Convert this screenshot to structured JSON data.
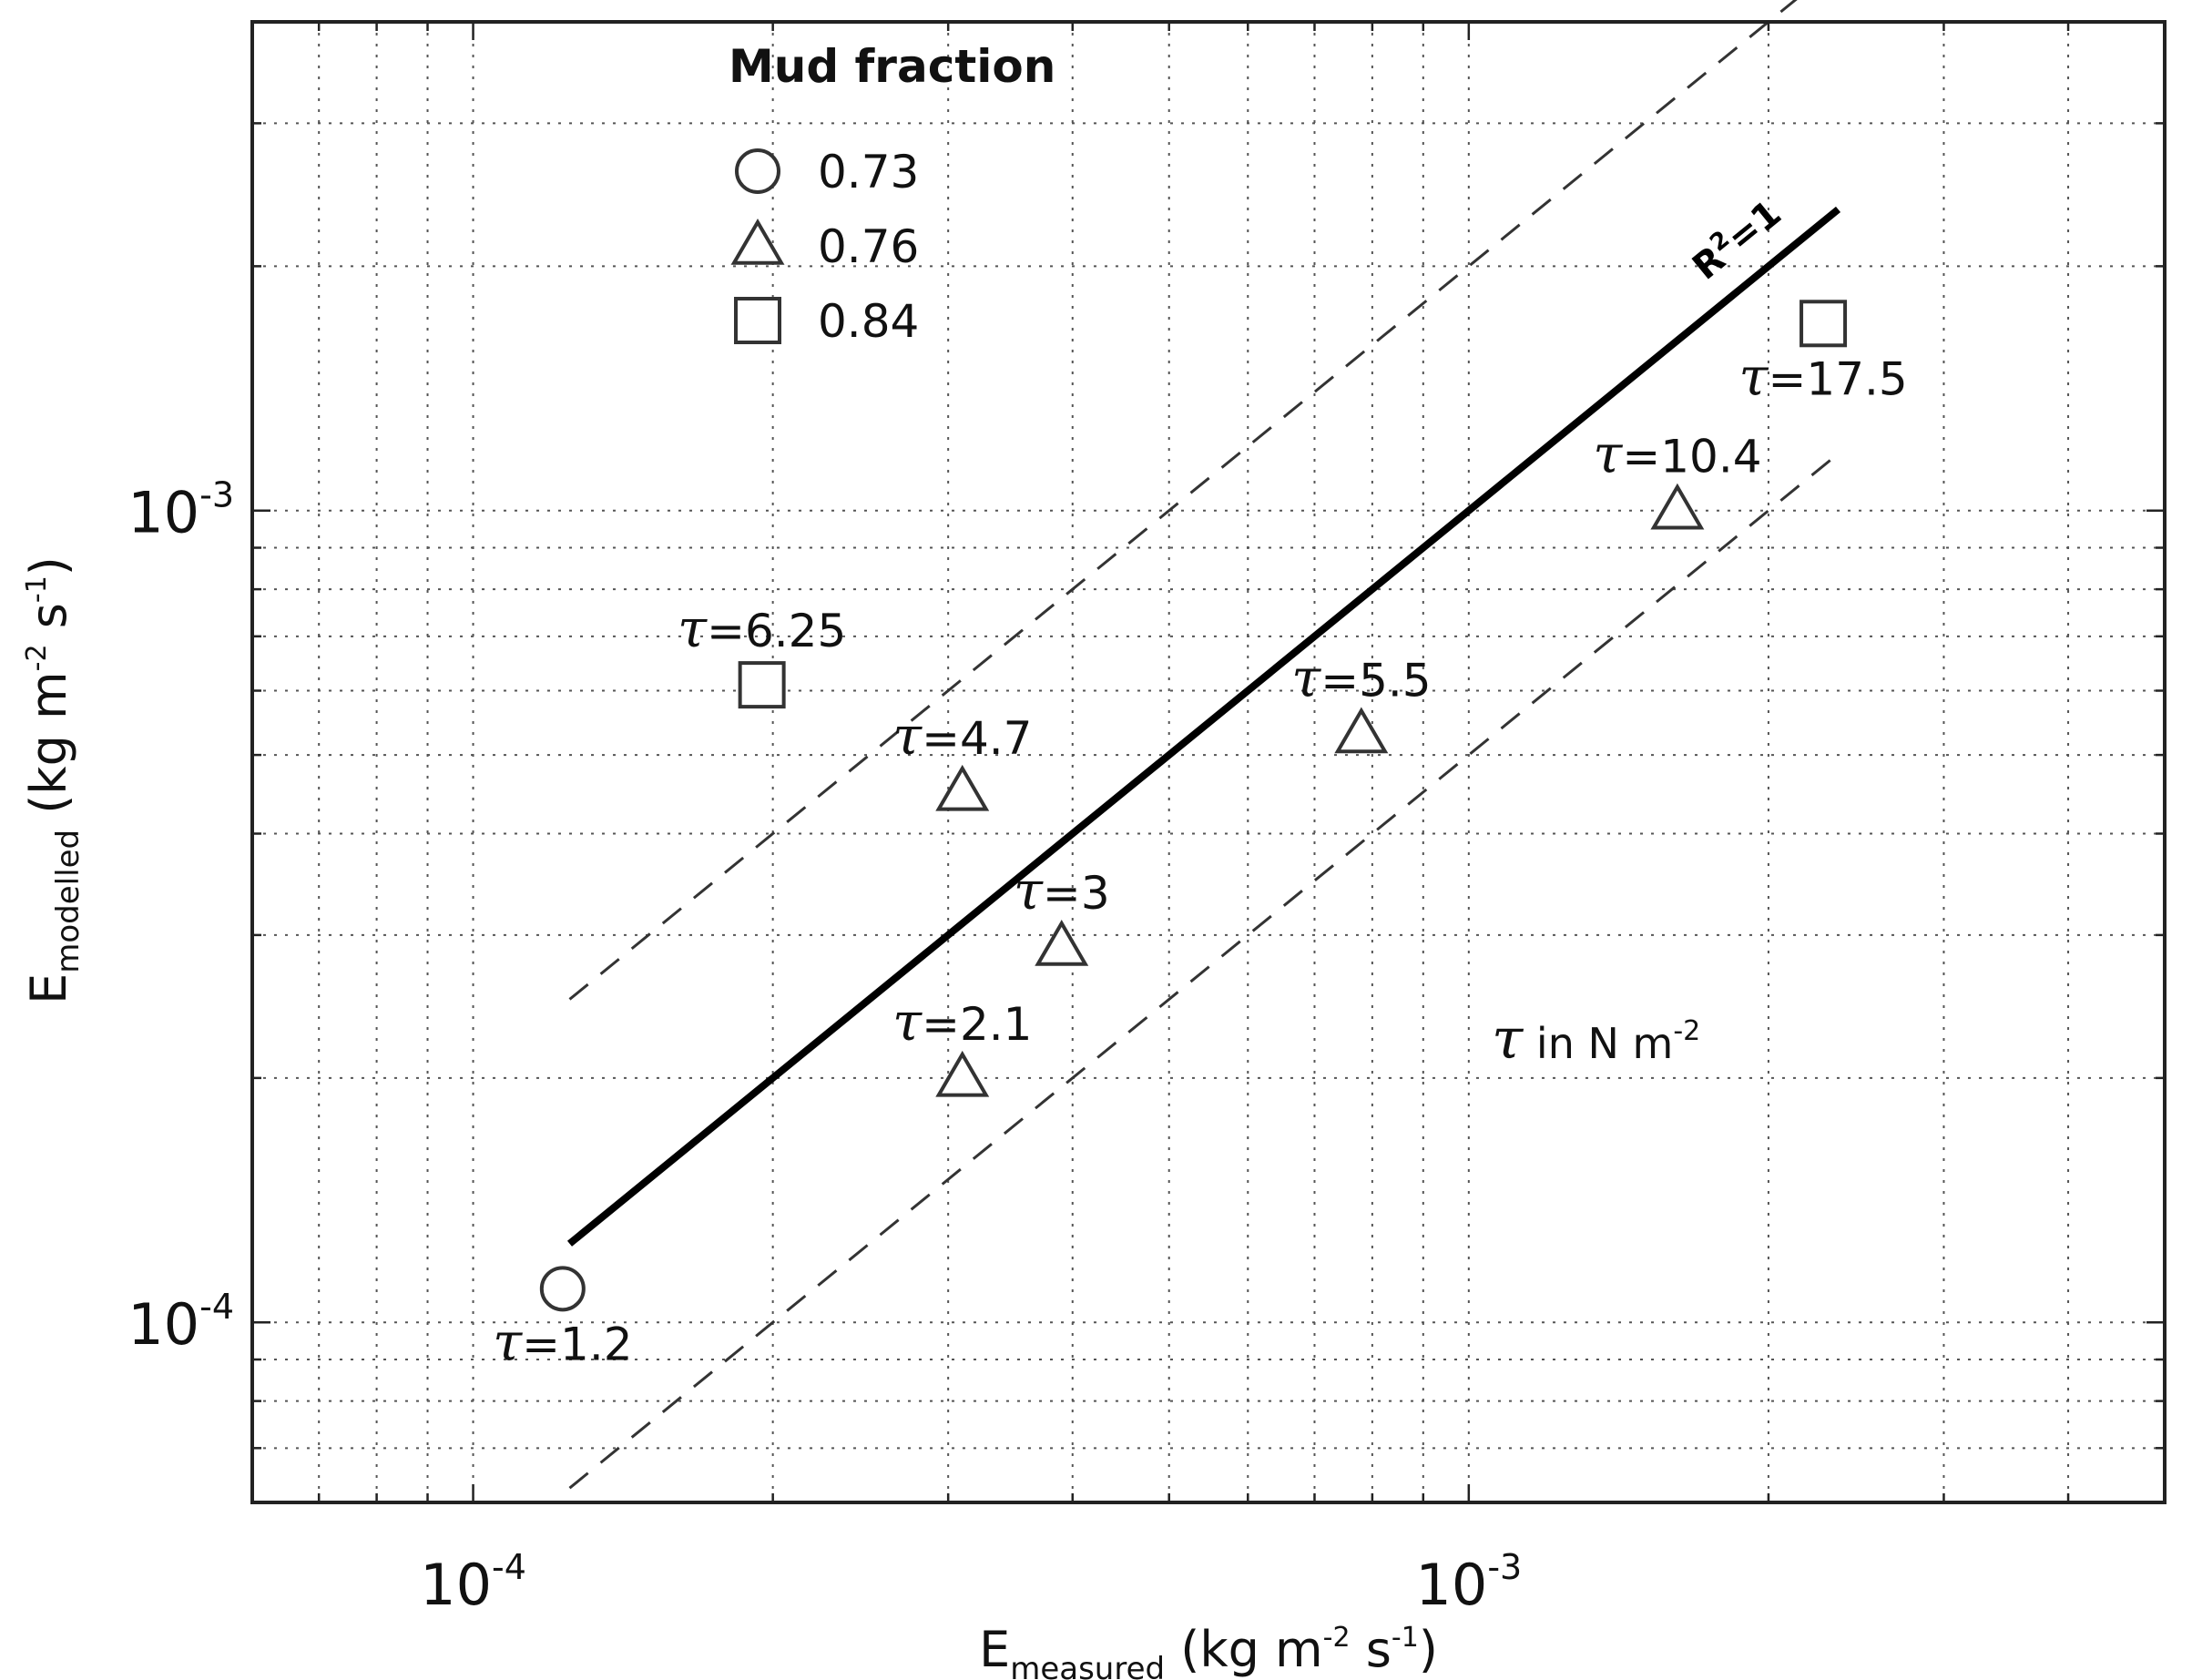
{
  "chart_data": {
    "type": "scatter",
    "xscale": "log",
    "yscale": "log",
    "xlim": [
      6e-05,
      0.005
    ],
    "ylim": [
      6e-05,
      0.004
    ],
    "grid": true,
    "xlabel": {
      "main": "E",
      "sub": "measured",
      "unit_pre": " (kg m",
      "sup1": "-2",
      "unit_mid": " s",
      "sup2": "-1",
      "unit_post": ")"
    },
    "ylabel": {
      "main": "E",
      "sub": "modelled",
      "unit_pre": " (kg m",
      "sup1": "-2",
      "unit_mid": " s",
      "sup2": "-1",
      "unit_post": ")"
    },
    "xticks": [
      {
        "value": 0.0001,
        "base": "10",
        "exp": "-4"
      },
      {
        "value": 0.001,
        "base": "10",
        "exp": "-3"
      }
    ],
    "yticks": [
      {
        "value": 0.0001,
        "base": "10",
        "exp": "-4"
      },
      {
        "value": 0.001,
        "base": "10",
        "exp": "-3"
      }
    ],
    "legend": {
      "title": "Mud fraction",
      "placement": "top-left",
      "entries": [
        {
          "marker": "circle",
          "label": "0.73"
        },
        {
          "marker": "triangle",
          "label": "0.76"
        },
        {
          "marker": "square",
          "label": "0.84"
        }
      ]
    },
    "reference_lines": [
      {
        "kind": "solid",
        "label": "R²=1",
        "label_base": "R",
        "label_sup": "2",
        "label_post": "=1",
        "factor": 1,
        "x_range": [
          0.000125,
          0.00235
        ]
      },
      {
        "kind": "dashed",
        "label": "",
        "factor": 2,
        "x_range": [
          0.000125,
          0.00235
        ]
      },
      {
        "kind": "dashed",
        "label": "",
        "factor": 0.5,
        "x_range": [
          0.000125,
          0.00235
        ]
      }
    ],
    "points": [
      {
        "marker": "circle",
        "mud_fraction": "0.73",
        "x": 0.000123,
        "y": 0.00011,
        "tau": "1.2",
        "label_pos": "below"
      },
      {
        "marker": "square",
        "mud_fraction": "0.84",
        "x": 0.000195,
        "y": 0.00061,
        "tau": "6.25",
        "label_pos": "above"
      },
      {
        "marker": "triangle",
        "mud_fraction": "0.76",
        "x": 0.00031,
        "y": 0.00045,
        "tau": "4.7",
        "label_pos": "above"
      },
      {
        "marker": "triangle",
        "mud_fraction": "0.76",
        "x": 0.00039,
        "y": 0.00029,
        "tau": "3",
        "label_pos": "above"
      },
      {
        "marker": "triangle",
        "mud_fraction": "0.76",
        "x": 0.00031,
        "y": 0.0002,
        "tau": "2.1",
        "label_pos": "above"
      },
      {
        "marker": "triangle",
        "mud_fraction": "0.76",
        "x": 0.00078,
        "y": 0.00053,
        "tau": "5.5",
        "label_pos": "above"
      },
      {
        "marker": "triangle",
        "mud_fraction": "0.76",
        "x": 0.00162,
        "y": 0.001,
        "tau": "10.4",
        "label_pos": "above"
      },
      {
        "marker": "square",
        "mud_fraction": "0.84",
        "x": 0.00227,
        "y": 0.0017,
        "tau": "17.5",
        "label_pos": "below"
      }
    ],
    "tau_symbol": "τ",
    "unit_note": {
      "symbol": "τ",
      "text": "  in N m",
      "sup": "-2"
    }
  }
}
